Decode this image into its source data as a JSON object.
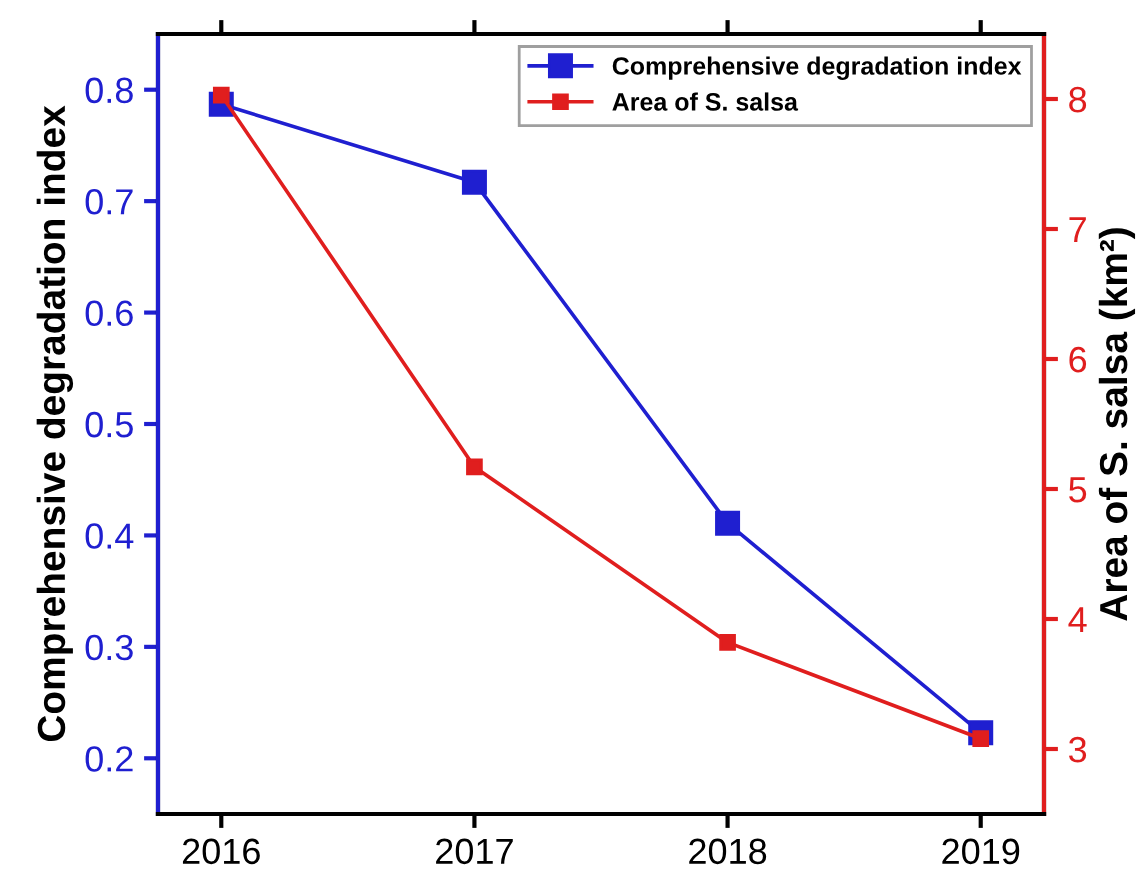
{
  "chart_data": {
    "type": "line",
    "x": [
      2016,
      2017,
      2018,
      2019
    ],
    "xlim": [
      2015.75,
      2019.25
    ],
    "xticks": [
      2016,
      2017,
      2018,
      2019
    ],
    "ylabel": "Comprehensive degradation index",
    "y2label": "Area of S. salsa (km²)",
    "ylim": [
      0.15,
      0.85
    ],
    "yticks": [
      0.2,
      0.3,
      0.4,
      0.5,
      0.6,
      0.7,
      0.8
    ],
    "y2lim": [
      2.5,
      8.5
    ],
    "y2ticks": [
      3,
      4,
      5,
      6,
      7,
      8
    ],
    "series": [
      {
        "name": "Comprehensive degradation index",
        "color": "#1f1fd0",
        "values": [
          0.787,
          0.717,
          0.411,
          0.223
        ]
      },
      {
        "name": "Area of S. salsa",
        "color": "#e01e1e",
        "axis": "y2",
        "values": [
          8.03,
          5.17,
          3.82,
          3.08
        ]
      }
    ],
    "marker": "square",
    "line_style": "solid",
    "legend": "top right",
    "grid": false
  }
}
